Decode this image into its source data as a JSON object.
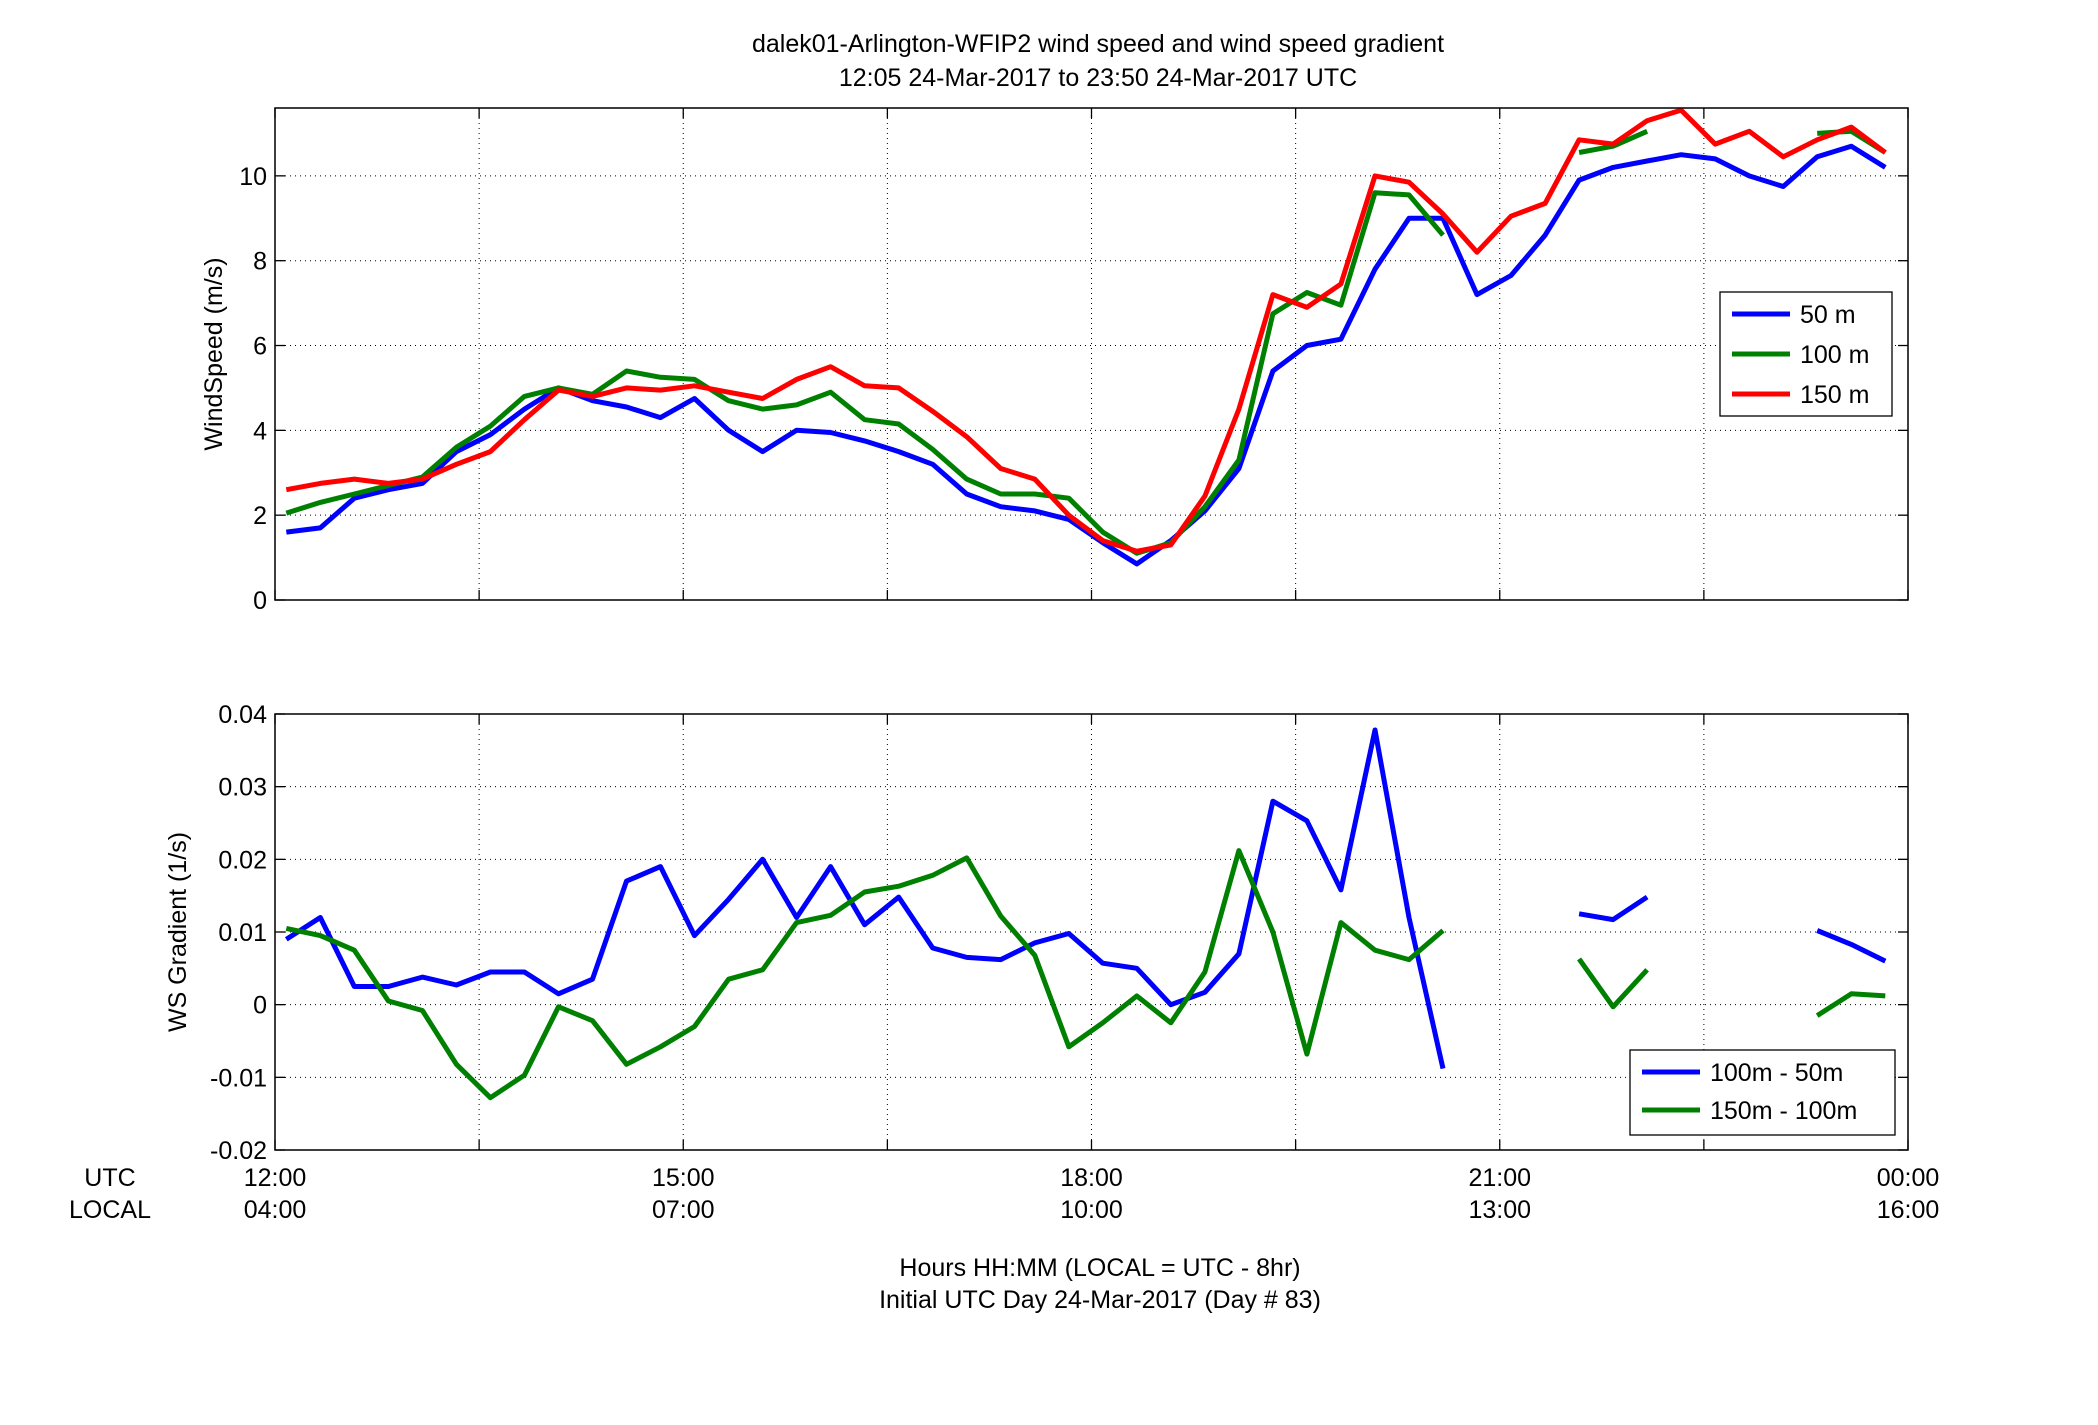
{
  "title_line1": "dalek01-Arlington-WFIP2  wind speed and wind speed gradient",
  "title_line2": "12:05 24-Mar-2017 to 23:50 24-Mar-2017  UTC",
  "xlabel_line1": "Hours HH:MM  (LOCAL = UTC - 8hr)",
  "xlabel_line2": "Initial UTC Day 24-Mar-2017 (Day # 83)",
  "row_label_utc": "UTC",
  "row_label_local": "LOCAL",
  "colors": {
    "blue": "#0000ff",
    "green": "#008000",
    "red": "#ff0000"
  },
  "chart_data": [
    {
      "type": "line",
      "ylabel": "WindSpeed (m/s)",
      "xlim": [
        12.0,
        24.0
      ],
      "ylim": [
        0,
        11.6
      ],
      "yticks": [
        0,
        2,
        4,
        6,
        8,
        10
      ],
      "xticks": [
        12,
        15,
        18,
        21,
        24
      ],
      "xtick_labels_utc": [
        "12:00",
        "15:00",
        "18:00",
        "21:00",
        "00:00"
      ],
      "xtick_labels_local": [
        "04:00",
        "07:00",
        "10:00",
        "13:00",
        "16:00"
      ],
      "grid": true,
      "legend_position": "right",
      "x": [
        12.083,
        12.333,
        12.583,
        12.833,
        13.083,
        13.333,
        13.583,
        13.833,
        14.083,
        14.333,
        14.583,
        14.833,
        15.083,
        15.333,
        15.583,
        15.833,
        16.083,
        16.333,
        16.583,
        16.833,
        17.083,
        17.333,
        17.583,
        17.833,
        18.083,
        18.333,
        18.583,
        18.833,
        19.083,
        19.333,
        19.583,
        19.833,
        20.083,
        20.333,
        20.583,
        20.833,
        21.083,
        21.333,
        21.583,
        21.833,
        22.083,
        22.333,
        22.583,
        22.833,
        23.083,
        23.333,
        23.583,
        23.833
      ],
      "series": [
        {
          "name": "50 m",
          "color": "#0000ff",
          "values": [
            1.6,
            1.7,
            2.4,
            2.6,
            2.75,
            3.5,
            3.9,
            4.5,
            5.0,
            4.7,
            4.55,
            4.3,
            4.75,
            4.0,
            3.5,
            4.0,
            3.95,
            3.75,
            3.5,
            3.2,
            2.5,
            2.2,
            2.1,
            1.9,
            1.35,
            0.85,
            1.4,
            2.1,
            3.1,
            5.4,
            6.0,
            6.15,
            7.8,
            9.0,
            9.0,
            7.2,
            7.65,
            8.6,
            9.9,
            10.2,
            10.35,
            10.5,
            10.4,
            10.0,
            9.75,
            10.45,
            10.7,
            10.2
          ]
        },
        {
          "name": "100 m",
          "color": "#008000",
          "values": [
            2.05,
            2.3,
            2.5,
            2.7,
            2.9,
            3.6,
            4.1,
            4.8,
            5.0,
            4.85,
            5.4,
            5.25,
            5.2,
            4.7,
            4.5,
            4.6,
            4.9,
            4.25,
            4.15,
            3.55,
            2.85,
            2.5,
            2.5,
            2.4,
            1.6,
            1.1,
            1.35,
            2.2,
            3.3,
            6.75,
            7.25,
            6.95,
            9.6,
            9.55,
            8.6,
            null,
            null,
            null,
            10.55,
            10.7,
            11.05,
            null,
            null,
            null,
            null,
            11.0,
            11.05,
            10.55
          ]
        },
        {
          "name": "150 m",
          "color": "#ff0000",
          "values": [
            2.6,
            2.75,
            2.85,
            2.75,
            2.85,
            3.2,
            3.5,
            4.25,
            4.95,
            4.8,
            5.0,
            4.95,
            5.05,
            4.9,
            4.75,
            5.2,
            5.5,
            5.05,
            5.0,
            4.45,
            3.85,
            3.1,
            2.85,
            2.0,
            1.4,
            1.15,
            1.3,
            2.45,
            4.5,
            7.2,
            6.9,
            7.45,
            10.0,
            9.85,
            9.1,
            8.2,
            9.05,
            9.35,
            10.85,
            10.75,
            11.3,
            11.55,
            10.75,
            11.05,
            10.45,
            10.85,
            11.15,
            10.55
          ]
        }
      ]
    },
    {
      "type": "line",
      "ylabel": "WS Gradient (1/s)",
      "xlim": [
        12.0,
        24.0
      ],
      "ylim": [
        -0.02,
        0.04
      ],
      "yticks": [
        -0.02,
        -0.01,
        0,
        0.01,
        0.02,
        0.03,
        0.04
      ],
      "ytick_labels": [
        "-0.02",
        "-0.01",
        "0",
        "0.01",
        "0.02",
        "0.03",
        "0.04"
      ],
      "xticks": [
        12,
        15,
        18,
        21,
        24
      ],
      "grid": true,
      "legend_position": "bottom-right",
      "x": [
        12.083,
        12.333,
        12.583,
        12.833,
        13.083,
        13.333,
        13.583,
        13.833,
        14.083,
        14.333,
        14.583,
        14.833,
        15.083,
        15.333,
        15.583,
        15.833,
        16.083,
        16.333,
        16.583,
        16.833,
        17.083,
        17.333,
        17.583,
        17.833,
        18.083,
        18.333,
        18.583,
        18.833,
        19.083,
        19.333,
        19.583,
        19.833,
        20.083,
        20.333,
        20.583,
        20.833,
        21.083,
        21.333,
        21.583,
        21.833,
        22.083,
        22.333,
        22.583,
        22.833,
        23.083,
        23.333,
        23.583,
        23.833
      ],
      "series": [
        {
          "name": "100m - 50m",
          "color": "#0000ff",
          "values": [
            0.009,
            0.012,
            0.0025,
            0.0025,
            0.0038,
            0.0027,
            0.0045,
            0.0045,
            0.0015,
            0.0035,
            0.017,
            0.019,
            0.0095,
            0.0145,
            0.02,
            0.012,
            0.019,
            0.011,
            0.0148,
            0.0078,
            0.0065,
            0.0062,
            0.0085,
            0.0098,
            0.0057,
            0.005,
            0.0,
            0.0017,
            0.007,
            0.028,
            0.0253,
            0.0158,
            0.0378,
            0.012,
            -0.0088,
            null,
            null,
            null,
            0.0125,
            0.0117,
            0.0148,
            null,
            null,
            null,
            null,
            0.0102,
            0.0083,
            0.006
          ]
        },
        {
          "name": "150m - 100m",
          "color": "#008000",
          "values": [
            0.0105,
            0.0095,
            0.0075,
            0.0005,
            -0.0008,
            -0.0082,
            -0.0128,
            -0.0097,
            -0.0003,
            -0.0022,
            -0.0082,
            -0.0058,
            -0.003,
            0.0035,
            0.0048,
            0.0113,
            0.0123,
            0.0155,
            0.0163,
            0.0178,
            0.0202,
            0.0122,
            0.0068,
            -0.0058,
            -0.0025,
            0.0012,
            -0.0025,
            0.0045,
            0.0212,
            0.01,
            -0.0068,
            0.0113,
            0.0075,
            0.0062,
            0.0102,
            null,
            null,
            null,
            0.0063,
            -0.0003,
            0.0048,
            null,
            null,
            null,
            null,
            -0.0015,
            0.0015,
            0.0012
          ]
        }
      ]
    }
  ]
}
